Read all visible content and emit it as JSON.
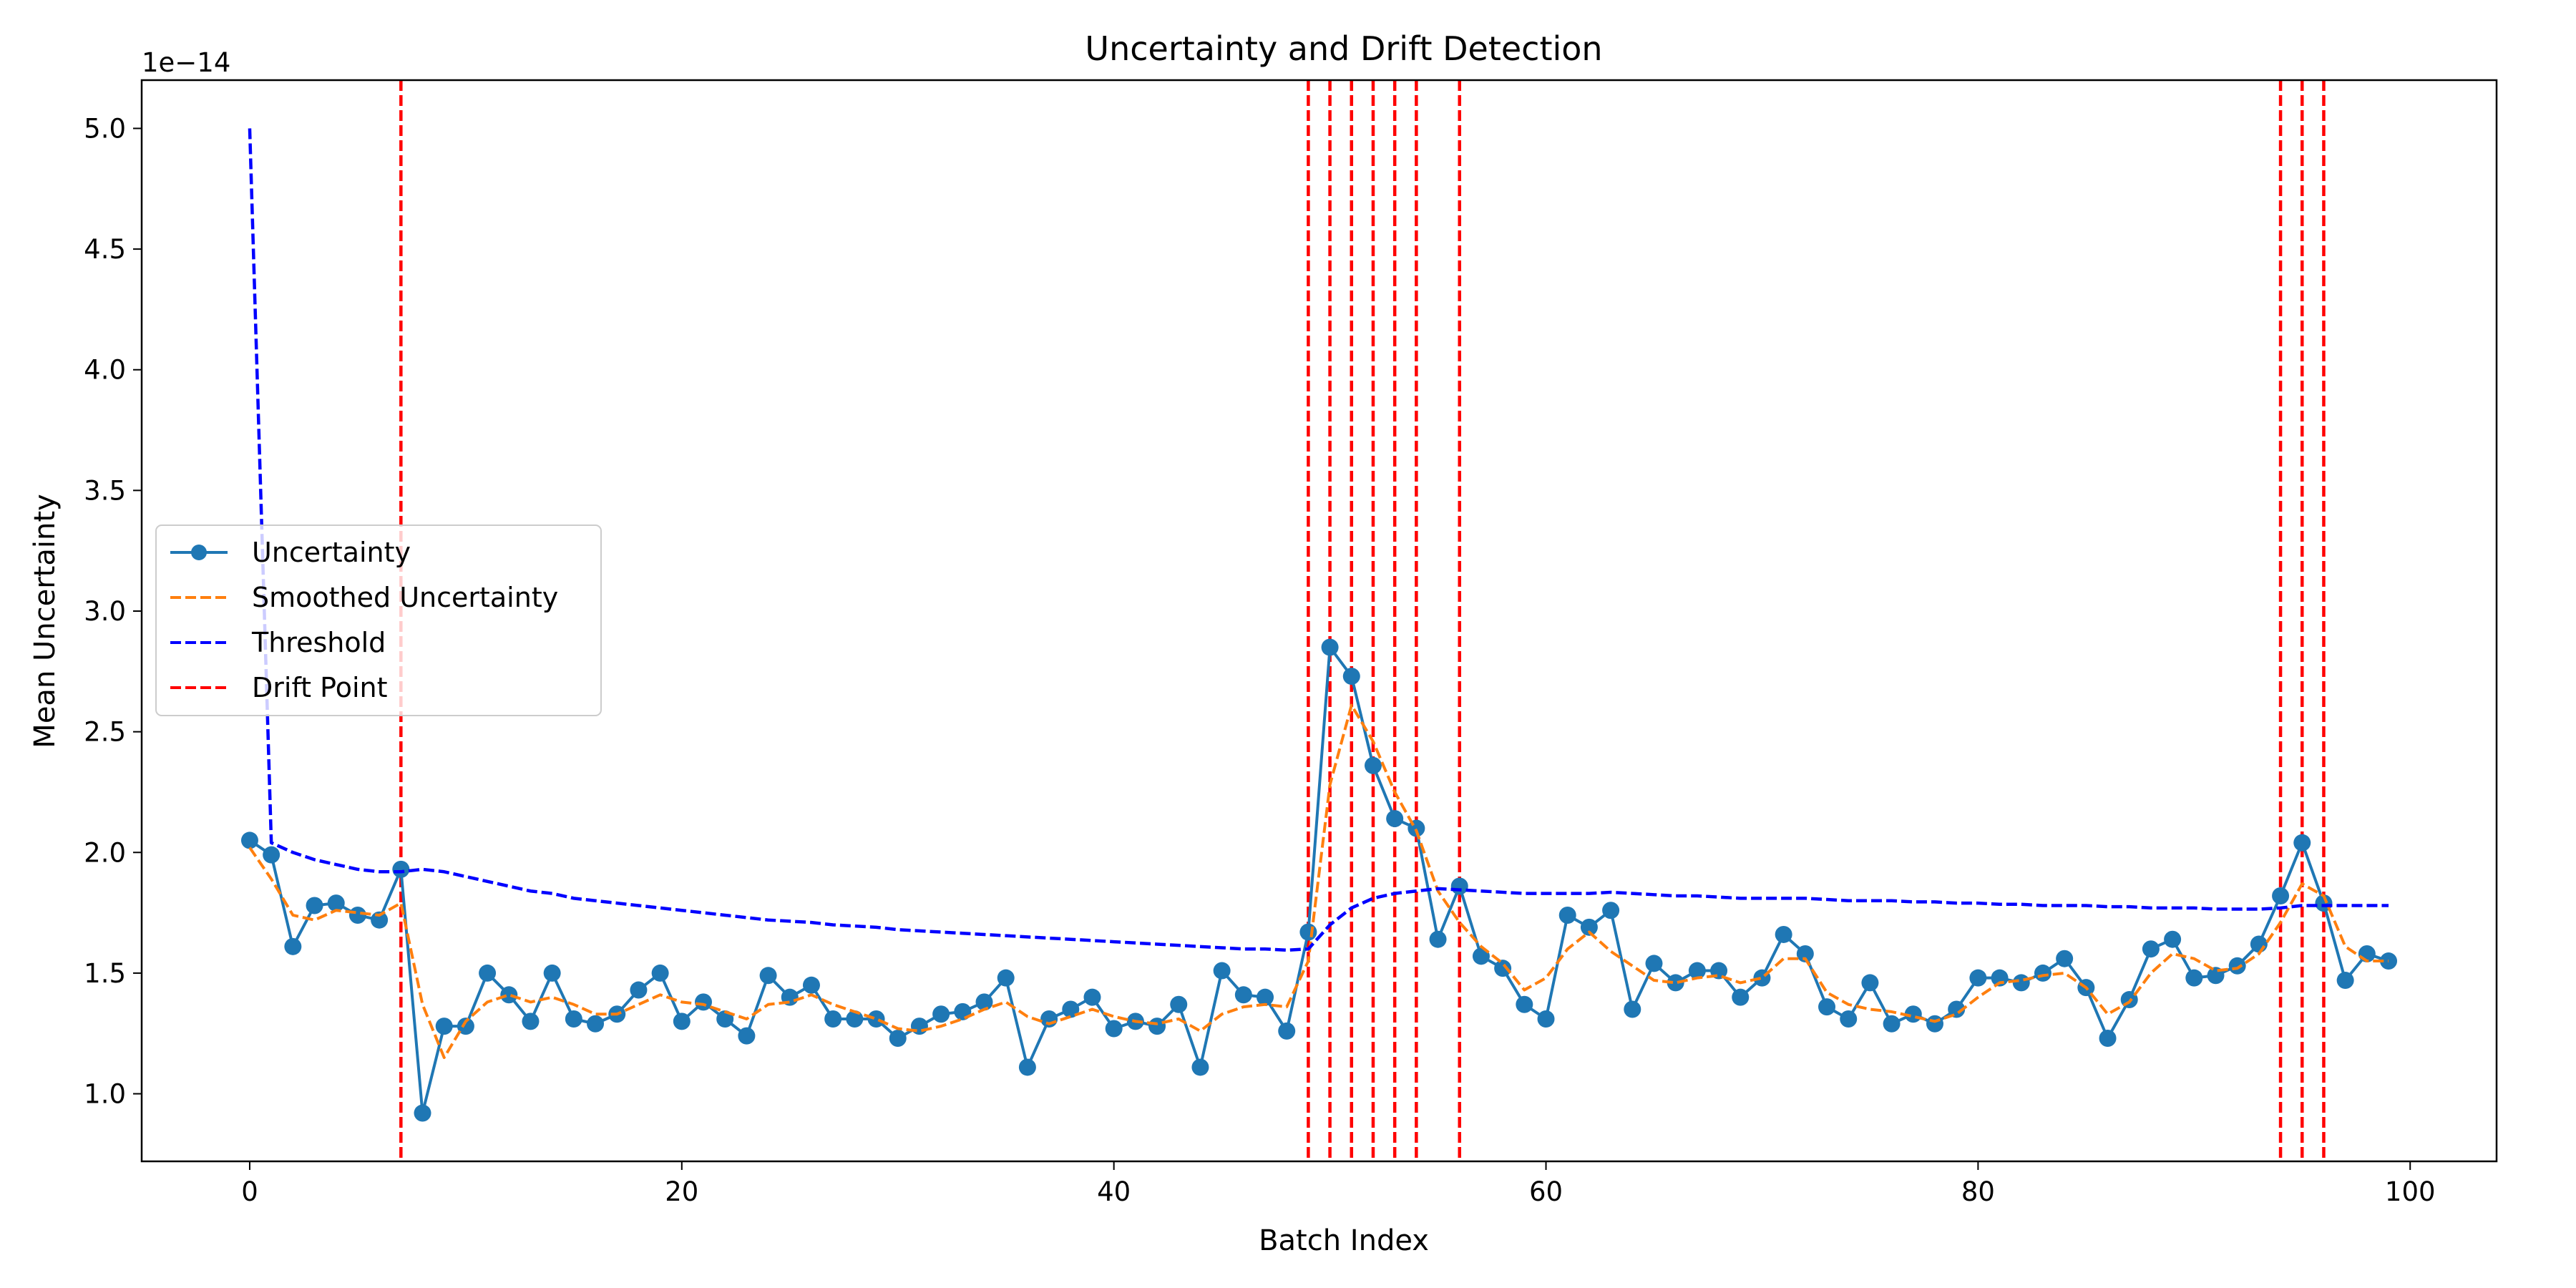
{
  "chart_data": {
    "type": "line",
    "title": "Uncertainty and Drift Detection",
    "xlabel": "Batch Index",
    "ylabel": "Mean Uncertainty",
    "y_scale_label": "1e−14",
    "xlim": [
      -5,
      104
    ],
    "ylim": [
      0.72,
      5.2
    ],
    "x_ticks": [
      0,
      20,
      40,
      60,
      80,
      100
    ],
    "x_tick_labels": [
      "0",
      "20",
      "40",
      "60",
      "80",
      "100"
    ],
    "y_ticks": [
      1.0,
      1.5,
      2.0,
      2.5,
      3.0,
      3.5,
      4.0,
      4.5,
      5.0
    ],
    "y_tick_labels": [
      "1.0",
      "1.5",
      "2.0",
      "2.5",
      "3.0",
      "3.5",
      "4.0",
      "4.5",
      "5.0"
    ],
    "grid": false,
    "legend_position": "center-left",
    "series": [
      {
        "name": "Uncertainty",
        "style": "solid-markers",
        "color": "#1f77b4",
        "values": [
          2.05,
          1.99,
          1.61,
          1.78,
          1.79,
          1.74,
          1.72,
          1.93,
          0.92,
          1.28,
          1.28,
          1.5,
          1.41,
          1.3,
          1.5,
          1.31,
          1.29,
          1.33,
          1.43,
          1.5,
          1.3,
          1.38,
          1.31,
          1.24,
          1.49,
          1.4,
          1.45,
          1.31,
          1.31,
          1.31,
          1.23,
          1.28,
          1.33,
          1.34,
          1.38,
          1.48,
          1.11,
          1.31,
          1.35,
          1.4,
          1.27,
          1.3,
          1.28,
          1.37,
          1.11,
          1.51,
          1.41,
          1.4,
          1.26,
          1.67,
          2.85,
          2.73,
          2.36,
          2.14,
          2.1,
          1.64,
          1.86,
          1.57,
          1.52,
          1.37,
          1.31,
          1.74,
          1.69,
          1.76,
          1.35,
          1.54,
          1.46,
          1.51,
          1.51,
          1.4,
          1.48,
          1.66,
          1.58,
          1.36,
          1.31,
          1.46,
          1.29,
          1.33,
          1.29,
          1.35,
          1.48,
          1.48,
          1.46,
          1.5,
          1.56,
          1.44,
          1.23,
          1.39,
          1.6,
          1.64,
          1.48,
          1.49,
          1.53,
          1.62,
          1.82,
          2.04,
          1.79,
          1.47,
          1.58,
          1.55
        ]
      },
      {
        "name": "Smoothed Uncertainty",
        "style": "dashed",
        "color": "#ff7f0e",
        "values": [
          2.02,
          1.89,
          1.74,
          1.72,
          1.76,
          1.75,
          1.74,
          1.79,
          1.37,
          1.15,
          1.3,
          1.38,
          1.41,
          1.38,
          1.4,
          1.37,
          1.33,
          1.33,
          1.37,
          1.41,
          1.38,
          1.37,
          1.34,
          1.31,
          1.37,
          1.38,
          1.41,
          1.37,
          1.34,
          1.31,
          1.27,
          1.26,
          1.28,
          1.31,
          1.35,
          1.38,
          1.32,
          1.29,
          1.32,
          1.35,
          1.32,
          1.3,
          1.29,
          1.31,
          1.26,
          1.33,
          1.36,
          1.37,
          1.36,
          1.55,
          2.28,
          2.61,
          2.46,
          2.25,
          2.09,
          1.84,
          1.71,
          1.61,
          1.54,
          1.43,
          1.48,
          1.6,
          1.67,
          1.59,
          1.53,
          1.47,
          1.46,
          1.48,
          1.49,
          1.46,
          1.48,
          1.56,
          1.56,
          1.42,
          1.37,
          1.35,
          1.34,
          1.32,
          1.3,
          1.33,
          1.4,
          1.46,
          1.47,
          1.49,
          1.5,
          1.44,
          1.33,
          1.38,
          1.5,
          1.58,
          1.56,
          1.51,
          1.52,
          1.58,
          1.71,
          1.87,
          1.82,
          1.61,
          1.55,
          1.55
        ]
      },
      {
        "name": "Threshold",
        "style": "dashed",
        "color": "#0000ff",
        "values": [
          5.0,
          2.04,
          2.0,
          1.97,
          1.95,
          1.93,
          1.92,
          1.92,
          1.93,
          1.92,
          1.9,
          1.88,
          1.86,
          1.84,
          1.83,
          1.81,
          1.8,
          1.79,
          1.78,
          1.77,
          1.76,
          1.75,
          1.74,
          1.73,
          1.72,
          1.715,
          1.71,
          1.7,
          1.695,
          1.69,
          1.68,
          1.675,
          1.67,
          1.665,
          1.66,
          1.655,
          1.65,
          1.645,
          1.64,
          1.635,
          1.63,
          1.625,
          1.62,
          1.615,
          1.61,
          1.605,
          1.6,
          1.6,
          1.595,
          1.6,
          1.7,
          1.77,
          1.81,
          1.83,
          1.84,
          1.85,
          1.845,
          1.84,
          1.835,
          1.83,
          1.83,
          1.83,
          1.83,
          1.835,
          1.83,
          1.825,
          1.82,
          1.82,
          1.815,
          1.81,
          1.81,
          1.81,
          1.81,
          1.805,
          1.8,
          1.8,
          1.8,
          1.795,
          1.795,
          1.79,
          1.79,
          1.785,
          1.785,
          1.78,
          1.78,
          1.78,
          1.775,
          1.775,
          1.77,
          1.77,
          1.77,
          1.765,
          1.765,
          1.765,
          1.77,
          1.78,
          1.78,
          1.78,
          1.78,
          1.78
        ]
      }
    ],
    "drift_points": {
      "name": "Drift Point",
      "color": "#ff0000",
      "style": "dashed-vertical",
      "x": [
        7,
        49,
        50,
        51,
        52,
        53,
        54,
        56,
        94,
        95,
        96
      ]
    }
  }
}
